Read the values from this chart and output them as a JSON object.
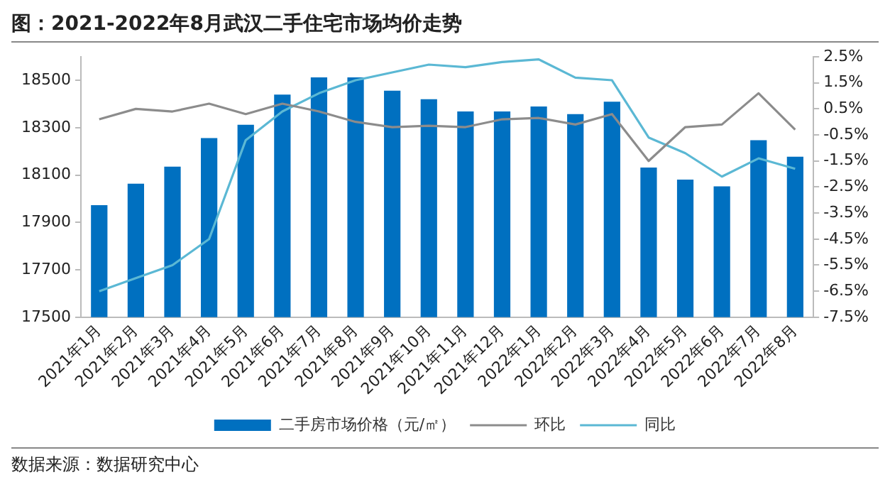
{
  "chart_data": {
    "type": "bar",
    "title": "图：2021-2022年8月武汉二手住宅市场均价走势",
    "categories": [
      "2021年1月",
      "2021年2月",
      "2021年3月",
      "2021年4月",
      "2021年5月",
      "2021年6月",
      "2021年7月",
      "2021年8月",
      "2021年9月",
      "2021年10月",
      "2021年11月",
      "2021年12月",
      "2022年1月",
      "2022年2月",
      "2022年3月",
      "2022年4月",
      "2022年5月",
      "2022年6月",
      "2022年7月",
      "2022年8月"
    ],
    "series": [
      {
        "name": "二手房市场价格（元/㎡）",
        "color": "#0070c0",
        "values": [
          17973,
          18064,
          18136,
          18257,
          18313,
          18440,
          18513,
          18513,
          18457,
          18421,
          18369,
          18369,
          18390,
          18358,
          18410,
          18132,
          18081,
          18053,
          18248,
          18178
        ]
      },
      {
        "name": "环比",
        "type": "line",
        "axis": "y2",
        "color": "#8c8c8c",
        "values": [
          0.1,
          0.5,
          0.4,
          0.7,
          0.3,
          0.7,
          0.4,
          0.0,
          -0.2,
          -0.15,
          -0.2,
          0.1,
          0.15,
          -0.1,
          0.3,
          -1.5,
          -0.2,
          -0.1,
          1.1,
          -0.3
        ]
      },
      {
        "name": "同比",
        "type": "line",
        "axis": "y2",
        "color": "#5bb8d4",
        "values": [
          -6.5,
          -6.0,
          -5.5,
          -4.5,
          -0.7,
          0.4,
          1.1,
          1.6,
          1.9,
          2.2,
          2.1,
          2.3,
          2.4,
          1.7,
          1.6,
          -0.6,
          -1.2,
          -2.1,
          -1.4,
          -1.8
        ]
      }
    ],
    "ylim": [
      17500,
      18600
    ],
    "yticks": [
      17500,
      17700,
      17900,
      18100,
      18300,
      18500
    ],
    "y2lim": [
      -7.5,
      2.5
    ],
    "y2ticks": [
      {
        "value": 2.5,
        "label": "2.5%"
      },
      {
        "value": 1.5,
        "label": "1.5%"
      },
      {
        "value": 0.5,
        "label": "0.5%"
      },
      {
        "value": -0.5,
        "label": "-0.5%"
      },
      {
        "value": -1.5,
        "label": "-1.5%"
      },
      {
        "value": -2.5,
        "label": "-2.5%"
      },
      {
        "value": -3.5,
        "label": "-3.5%"
      },
      {
        "value": -4.5,
        "label": "-4.5%"
      },
      {
        "value": -5.5,
        "label": "-5.5%"
      },
      {
        "value": -6.5,
        "label": "-6.5%"
      },
      {
        "value": -7.5,
        "label": "-7.5%"
      }
    ],
    "grid": false,
    "legend": "bottom",
    "marker": "none",
    "line_style": "solid",
    "annotations": [
      "数据来源：数据研究中心"
    ]
  }
}
